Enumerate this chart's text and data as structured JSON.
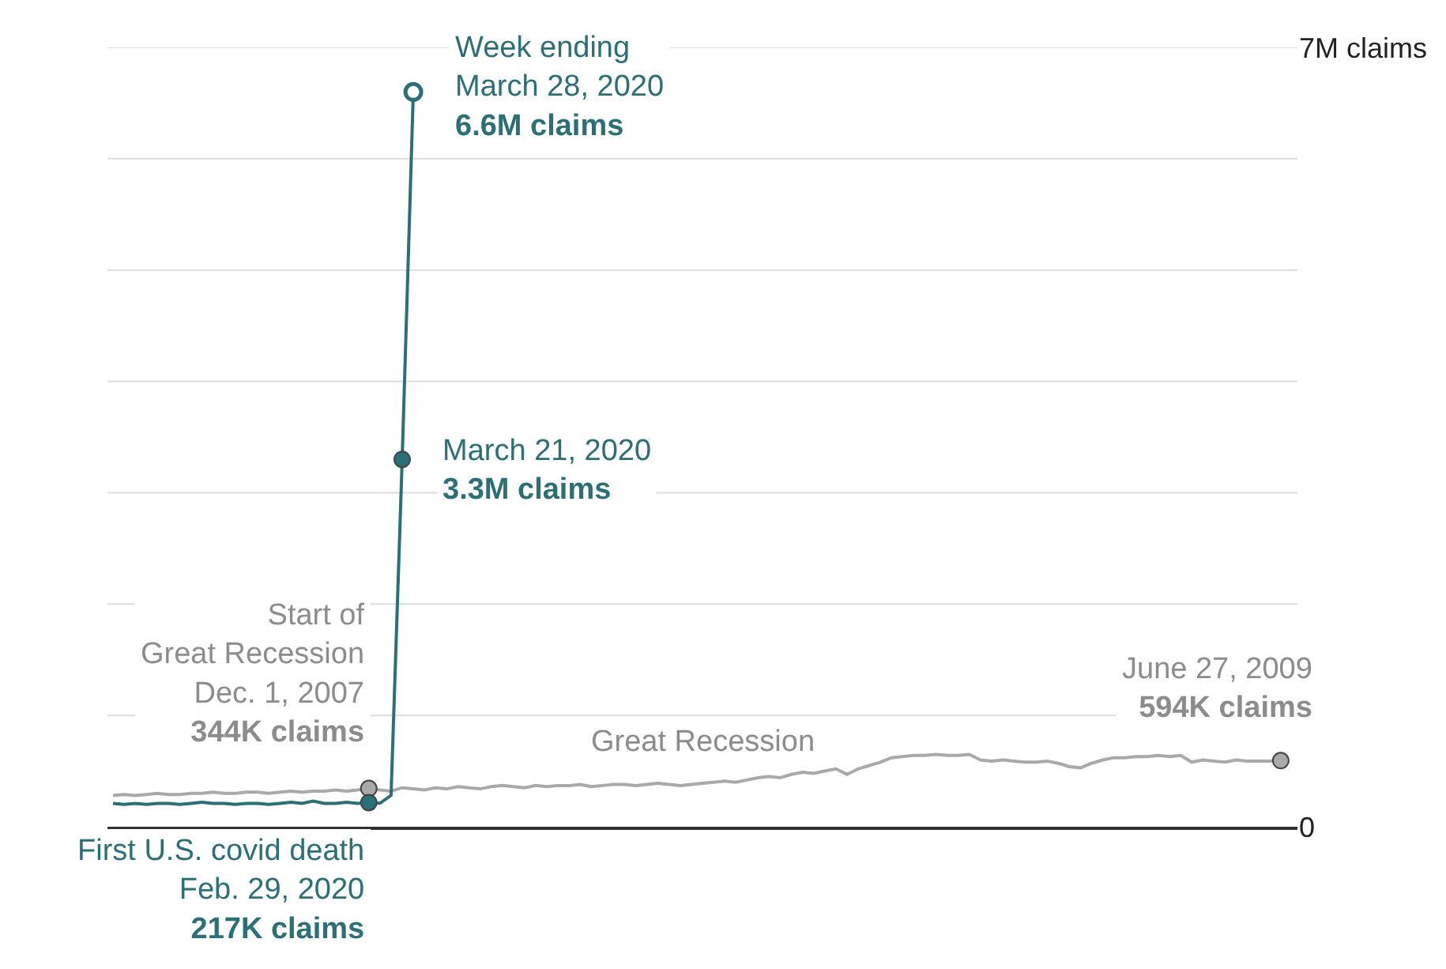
{
  "chart_data": {
    "type": "line",
    "categories": [
      null,
      null,
      null,
      null,
      null,
      null,
      null,
      null,
      null,
      null,
      null,
      null,
      null,
      null,
      null,
      null,
      null,
      null,
      null,
      null,
      null,
      null,
      null,
      null,
      null,
      null,
      null,
      null,
      null,
      null,
      null,
      null,
      null,
      null,
      null,
      null,
      null,
      null,
      null,
      null,
      null,
      null,
      null,
      null,
      null,
      null,
      null,
      null,
      null,
      null,
      null,
      null,
      null,
      null,
      null,
      null,
      null,
      null,
      null,
      null,
      null,
      null,
      null,
      null,
      null,
      null,
      null,
      null,
      null,
      null,
      null,
      null,
      null,
      null,
      null,
      null,
      null,
      null,
      null,
      null,
      null,
      null,
      null,
      null,
      null,
      null,
      null,
      null,
      null,
      null,
      null,
      null,
      null,
      null,
      null,
      null,
      null,
      null,
      null,
      null,
      null,
      null,
      null,
      null,
      null,
      null
    ],
    "ylim": [
      0,
      7
    ],
    "yticks": [
      {
        "value": 0,
        "label": "0"
      },
      {
        "value": 1,
        "label": null
      },
      {
        "value": 2,
        "label": null
      },
      {
        "value": 3,
        "label": null
      },
      {
        "value": 4,
        "label": null
      },
      {
        "value": 5,
        "label": null
      },
      {
        "value": 6,
        "label": null
      },
      {
        "value": 7,
        "label": "7M claims"
      }
    ],
    "grid": "y",
    "legend": false,
    "marker": "none",
    "line_style": "solid",
    "series": [
      {
        "name": "Great Recession",
        "color": "#a9a9a9",
        "values": [
          0.28,
          0.29,
          0.28,
          0.29,
          0.3,
          0.29,
          0.29,
          0.3,
          0.3,
          0.31,
          0.3,
          0.3,
          0.31,
          0.31,
          0.3,
          0.31,
          0.32,
          0.31,
          0.32,
          0.32,
          0.33,
          0.32,
          0.33,
          0.344,
          0.33,
          0.32,
          0.35,
          0.34,
          0.33,
          0.35,
          0.34,
          0.36,
          0.35,
          0.34,
          0.36,
          0.37,
          0.36,
          0.35,
          0.37,
          0.36,
          0.37,
          0.37,
          0.38,
          0.36,
          0.37,
          0.38,
          0.38,
          0.37,
          0.38,
          0.39,
          0.38,
          0.37,
          0.38,
          0.39,
          0.4,
          0.41,
          0.4,
          0.42,
          0.44,
          0.45,
          0.44,
          0.47,
          0.49,
          0.48,
          0.5,
          0.52,
          0.47,
          0.52,
          0.55,
          0.58,
          0.62,
          0.63,
          0.64,
          0.64,
          0.65,
          0.64,
          0.64,
          0.65,
          0.6,
          0.59,
          0.6,
          0.59,
          0.58,
          0.58,
          0.59,
          0.57,
          0.54,
          0.53,
          0.57,
          0.6,
          0.62,
          0.62,
          0.63,
          0.63,
          0.64,
          0.63,
          0.64,
          0.58,
          0.6,
          0.59,
          0.58,
          0.6,
          0.59,
          0.59,
          0.59,
          0.594
        ]
      },
      {
        "color": "#2b6f77",
        "values": [
          0.21,
          0.2,
          0.21,
          0.2,
          0.21,
          0.21,
          0.2,
          0.21,
          0.22,
          0.21,
          0.21,
          0.2,
          0.21,
          0.21,
          0.2,
          0.21,
          0.22,
          0.21,
          0.23,
          0.21,
          0.21,
          0.22,
          0.21,
          0.217,
          0.211,
          0.282,
          3.3,
          6.6,
          null,
          null,
          null,
          null,
          null,
          null,
          null,
          null,
          null,
          null,
          null,
          null,
          null,
          null,
          null,
          null,
          null,
          null,
          null,
          null,
          null,
          null,
          null,
          null,
          null,
          null,
          null,
          null,
          null,
          null,
          null,
          null,
          null,
          null,
          null,
          null,
          null,
          null,
          null,
          null,
          null,
          null,
          null,
          null,
          null,
          null,
          null,
          null,
          null,
          null,
          null,
          null,
          null,
          null,
          null,
          null,
          null,
          null,
          null,
          null,
          null,
          null,
          null,
          null,
          null,
          null,
          null,
          null,
          null,
          null,
          null,
          null,
          null,
          null,
          null,
          null,
          null,
          null
        ]
      }
    ],
    "annotations": [
      "Week ending\nMarch 28, 2020\n6.6M claims",
      "March 21, 2020\n3.3M claims",
      {
        "text": "Start of\nGreat Recession\nDec. 1, 2007\n344K claims",
        "y": 0.344
      },
      {
        "text": "First U.S. covid death\nFeb. 29, 2020\n217K claims",
        "y": 0.217
      },
      {
        "text": "June 27, 2009\n594K claims",
        "y": 0.594
      }
    ]
  }
}
